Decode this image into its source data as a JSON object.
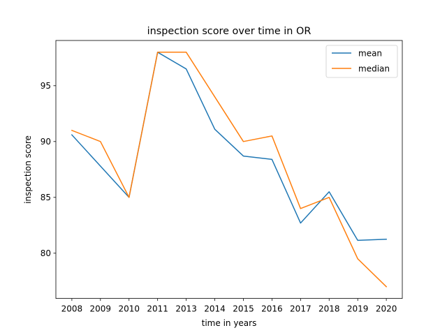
{
  "chart_data": {
    "type": "line",
    "title": "inspection score over time in OR",
    "xlabel": "time in years",
    "ylabel": "inspection score",
    "categories": [
      "2008",
      "2009",
      "2010",
      "2011",
      "2013",
      "2014",
      "2015",
      "2016",
      "2017",
      "2018",
      "2019",
      "2020"
    ],
    "yticks": [
      80,
      85,
      90,
      95
    ],
    "ylim": [
      75.95,
      99.05
    ],
    "grid": false,
    "legend_position": "top-right",
    "series": [
      {
        "name": "mean",
        "color": "#1f77b4",
        "values": [
          90.6,
          87.8,
          85.0,
          98.0,
          96.5,
          91.1,
          88.7,
          88.4,
          82.7,
          85.5,
          81.15,
          81.25
        ]
      },
      {
        "name": "median",
        "color": "#ff7f0e",
        "values": [
          91.0,
          90.0,
          85.0,
          98.0,
          98.0,
          94.0,
          90.0,
          90.5,
          84.0,
          85.0,
          79.5,
          77.0
        ]
      }
    ]
  }
}
